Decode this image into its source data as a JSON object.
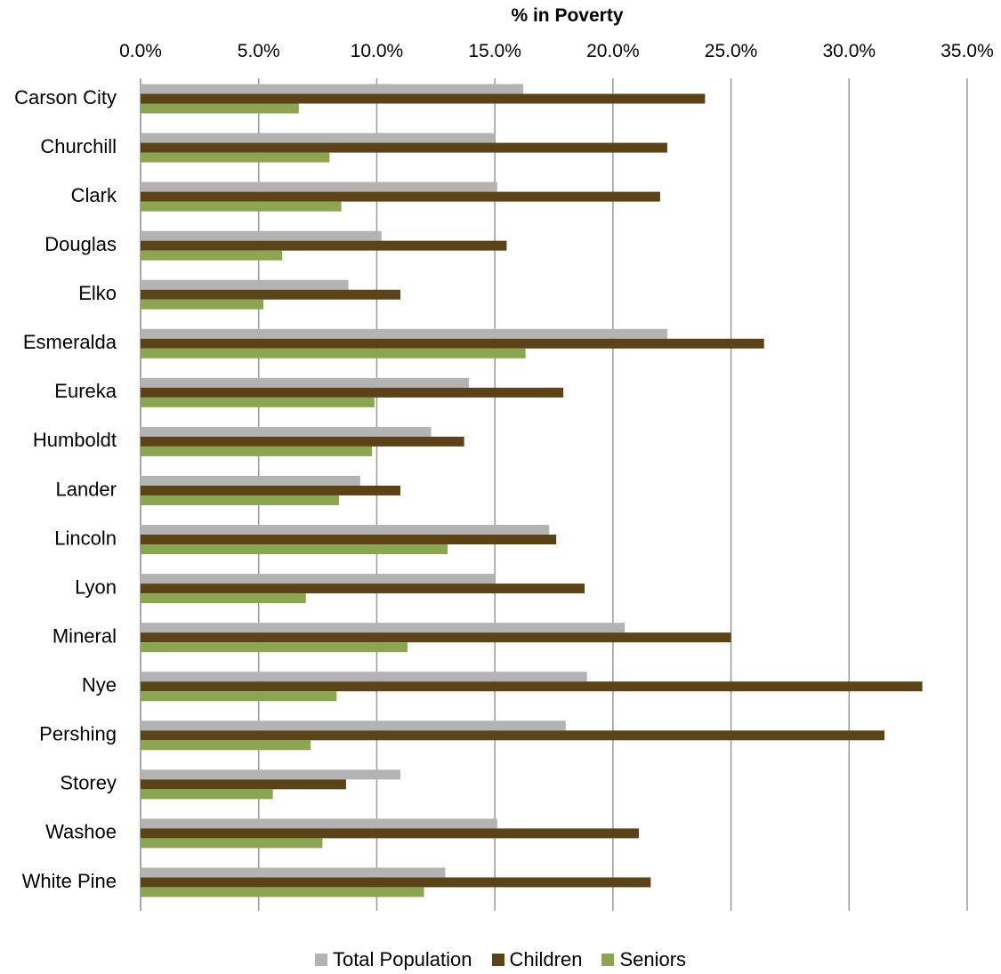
{
  "chart_data": {
    "type": "bar",
    "orientation": "horizontal",
    "title": "% in Poverty",
    "xlim": [
      0,
      35
    ],
    "xticks": [
      "0.0%",
      "5.0%",
      "10.0%",
      "15.0%",
      "20.0%",
      "25.0%",
      "30.0%",
      "35.0%"
    ],
    "grid": "vertical",
    "legend_position": "bottom",
    "categories": [
      "Carson City",
      "Churchill",
      "Clark",
      "Douglas",
      "Elko",
      "Esmeralda",
      "Eureka",
      "Humboldt",
      "Lander",
      "Lincoln",
      "Lyon",
      "Mineral",
      "Nye",
      "Pershing",
      "Storey",
      "Washoe",
      "White Pine"
    ],
    "series": [
      {
        "name": "Total Population",
        "color": "#b3b3b3",
        "values": [
          16.2,
          15.0,
          15.1,
          10.2,
          8.8,
          22.3,
          13.9,
          12.3,
          9.3,
          17.3,
          15.0,
          20.5,
          18.9,
          18.0,
          11.0,
          15.1,
          12.9
        ]
      },
      {
        "name": "Children",
        "color": "#5c4317",
        "values": [
          23.9,
          22.3,
          22.0,
          15.5,
          11.0,
          26.4,
          17.9,
          13.7,
          11.0,
          17.6,
          18.8,
          25.0,
          33.1,
          31.5,
          8.7,
          21.1,
          21.6
        ]
      },
      {
        "name": "Seniors",
        "color": "#8aa651",
        "values": [
          6.7,
          8.0,
          8.5,
          6.0,
          5.2,
          16.3,
          9.9,
          9.8,
          8.4,
          13.0,
          7.0,
          11.3,
          8.3,
          7.2,
          5.6,
          7.7,
          12.0
        ]
      }
    ]
  }
}
